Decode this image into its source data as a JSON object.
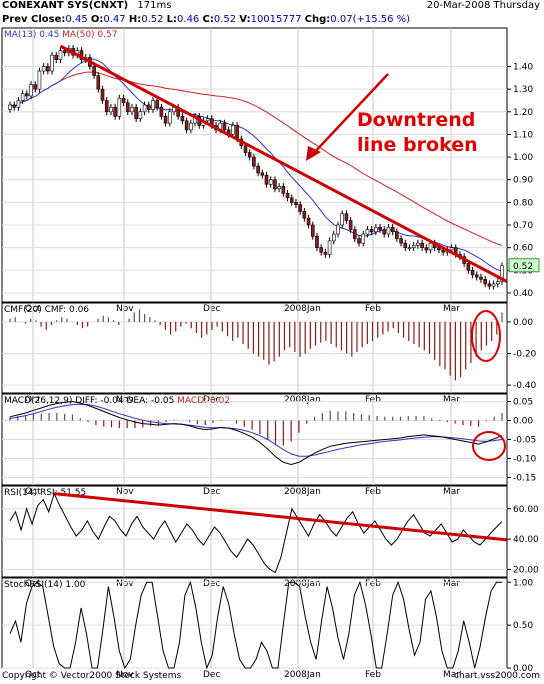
{
  "header": {
    "symbol": "CONEXANT SYS(CNXT)",
    "timing": "171ms",
    "date": "20-Mar-2008 Thursday",
    "prev_close_label": "Prev Close:",
    "prev_close": "0.45",
    "o_label": "O:",
    "o": "0.47",
    "h_label": "H:",
    "h": "0.52",
    "l_label": "L:",
    "l": "0.46",
    "c_label": "C:",
    "c": "0.52",
    "v_label": "V:",
    "v": "10015777",
    "chg_label": "Chg:",
    "chg": "0.07(+15.56 %)"
  },
  "footer": {
    "left": "Copyright © Vector2000 Stock Systems",
    "right": "chart.vss2000.com"
  },
  "colors": {
    "ma13": "#3333cc",
    "ma50": "#cc2222",
    "trend": "#cc0000",
    "up": "#ffffff",
    "down": "#8b1a1a",
    "cmf_pos": "#555555",
    "cmf_neg": "#8b1a1a"
  },
  "chart_data": [
    {
      "type": "candlestick",
      "legend": [
        "MA(13) 0.45",
        "MA(50) 0.57"
      ],
      "annotation": "Downtrend\nline broken",
      "price_badge": "0.52",
      "x_ticks": [
        "Oct",
        "Nov",
        "Dec",
        "2008Jan",
        "Feb",
        "Mar"
      ],
      "y_ticks": [
        "1.40",
        "1.30",
        "1.20",
        "1.10",
        "1.00",
        "0.90",
        "0.80",
        "0.70",
        "0.60",
        "0.50",
        "0.40"
      ],
      "ylim": [
        0.36,
        1.57
      ],
      "closes": [
        1.23,
        1.22,
        1.25,
        1.28,
        1.27,
        1.32,
        1.3,
        1.38,
        1.4,
        1.38,
        1.45,
        1.43,
        1.47,
        1.46,
        1.48,
        1.45,
        1.47,
        1.43,
        1.44,
        1.4,
        1.36,
        1.3,
        1.25,
        1.2,
        1.22,
        1.18,
        1.26,
        1.24,
        1.2,
        1.22,
        1.17,
        1.2,
        1.23,
        1.21,
        1.25,
        1.22,
        1.18,
        1.15,
        1.2,
        1.22,
        1.18,
        1.16,
        1.12,
        1.15,
        1.18,
        1.14,
        1.16,
        1.17,
        1.14,
        1.12,
        1.15,
        1.12,
        1.1,
        1.14,
        1.08,
        1.05,
        1.02,
        1.0,
        0.96,
        0.93,
        0.92,
        0.88,
        0.9,
        0.86,
        0.87,
        0.84,
        0.82,
        0.8,
        0.79,
        0.76,
        0.73,
        0.7,
        0.65,
        0.6,
        0.58,
        0.57,
        0.63,
        0.66,
        0.7,
        0.75,
        0.72,
        0.68,
        0.64,
        0.62,
        0.66,
        0.68,
        0.67,
        0.69,
        0.68,
        0.66,
        0.69,
        0.67,
        0.64,
        0.62,
        0.6,
        0.6,
        0.61,
        0.62,
        0.6,
        0.59,
        0.62,
        0.6,
        0.59,
        0.58,
        0.59,
        0.6,
        0.57,
        0.56,
        0.53,
        0.5,
        0.48,
        0.47,
        0.46,
        0.44,
        0.43,
        0.44,
        0.45,
        0.52
      ],
      "ma13_final": "0.45",
      "ma50_final": "0.57"
    },
    {
      "type": "bar",
      "legend": [
        "CMF(20)",
        "CMF: 0.06"
      ],
      "y_ticks": [
        "0.00",
        "-0.20",
        "-0.40"
      ],
      "ylim": [
        -0.45,
        0.12
      ],
      "x_ticks": [
        "Oct",
        "Nov",
        "Dec",
        "2008Jan",
        "Feb",
        "Mar"
      ],
      "values": [
        0.02,
        0.03,
        0.0,
        -0.01,
        0.02,
        0.01,
        -0.03,
        -0.05,
        -0.02,
        0.01,
        0.03,
        0.02,
        0.0,
        -0.02,
        -0.04,
        -0.03,
        0.0,
        0.02,
        0.04,
        0.03,
        0.01,
        -0.02,
        0.0,
        0.02,
        0.06,
        0.08,
        0.05,
        0.03,
        0.01,
        -0.02,
        -0.05,
        -0.08,
        -0.06,
        -0.03,
        -0.01,
        -0.04,
        -0.07,
        -0.1,
        -0.08,
        -0.05,
        -0.03,
        -0.06,
        -0.09,
        -0.12,
        -0.1,
        -0.14,
        -0.17,
        -0.2,
        -0.22,
        -0.24,
        -0.27,
        -0.25,
        -0.22,
        -0.18,
        -0.16,
        -0.19,
        -0.22,
        -0.2,
        -0.17,
        -0.15,
        -0.13,
        -0.12,
        -0.14,
        -0.16,
        -0.18,
        -0.2,
        -0.22,
        -0.19,
        -0.16,
        -0.14,
        -0.12,
        -0.1,
        -0.08,
        -0.06,
        -0.04,
        -0.07,
        -0.1,
        -0.12,
        -0.14,
        -0.16,
        -0.18,
        -0.2,
        -0.24,
        -0.28,
        -0.3,
        -0.34,
        -0.37,
        -0.35,
        -0.3,
        -0.26,
        -0.22,
        -0.18,
        -0.15,
        -0.12,
        -0.08,
        0.06
      ],
      "marker_circle": true
    },
    {
      "type": "line",
      "legend": [
        "MACD(26,12,9)",
        "DIFF: -0.04",
        "DEA: -0.05",
        "MACD: 0.02"
      ],
      "y_ticks": [
        "0.05",
        "0.00",
        "-0.05",
        "-0.10",
        "-0.15"
      ],
      "ylim": [
        -0.17,
        0.07
      ],
      "x_ticks": [
        "Oct",
        "Nov",
        "Dec",
        "2008Jan",
        "Feb",
        "Mar"
      ],
      "diff": [
        0.01,
        0.015,
        0.02,
        0.027,
        0.033,
        0.04,
        0.045,
        0.048,
        0.05,
        0.046,
        0.04,
        0.032,
        0.024,
        0.016,
        0.008,
        0.002,
        -0.004,
        -0.008,
        -0.01,
        -0.012,
        -0.01,
        -0.008,
        -0.01,
        -0.014,
        -0.02,
        -0.024,
        -0.022,
        -0.018,
        -0.02,
        -0.026,
        -0.034,
        -0.044,
        -0.058,
        -0.075,
        -0.095,
        -0.11,
        -0.116,
        -0.11,
        -0.098,
        -0.086,
        -0.076,
        -0.068,
        -0.064,
        -0.06,
        -0.058,
        -0.056,
        -0.054,
        -0.052,
        -0.05,
        -0.048,
        -0.046,
        -0.042,
        -0.04,
        -0.038,
        -0.04,
        -0.042,
        -0.046,
        -0.05,
        -0.054,
        -0.058,
        -0.062,
        -0.056,
        -0.048,
        -0.04
      ],
      "dea": [
        0.005,
        0.009,
        0.013,
        0.018,
        0.024,
        0.03,
        0.035,
        0.039,
        0.042,
        0.043,
        0.042,
        0.038,
        0.032,
        0.025,
        0.018,
        0.012,
        0.006,
        0.001,
        -0.003,
        -0.006,
        -0.008,
        -0.009,
        -0.01,
        -0.012,
        -0.015,
        -0.018,
        -0.019,
        -0.019,
        -0.02,
        -0.022,
        -0.026,
        -0.032,
        -0.04,
        -0.05,
        -0.063,
        -0.077,
        -0.088,
        -0.094,
        -0.094,
        -0.091,
        -0.086,
        -0.081,
        -0.076,
        -0.072,
        -0.068,
        -0.064,
        -0.061,
        -0.058,
        -0.055,
        -0.053,
        -0.051,
        -0.048,
        -0.046,
        -0.044,
        -0.043,
        -0.043,
        -0.044,
        -0.046,
        -0.048,
        -0.051,
        -0.054,
        -0.055,
        -0.053,
        -0.05
      ],
      "marker_circle": true
    },
    {
      "type": "line",
      "legend": [
        "RSI(14)",
        "RSI: 51.55"
      ],
      "y_ticks": [
        "60.00",
        "40.00",
        "20.00"
      ],
      "ylim": [
        15,
        75
      ],
      "x_ticks": [
        "Oct",
        "Nov",
        "Dec",
        "2008Jan",
        "Feb",
        "Mar"
      ],
      "values": [
        52,
        58,
        46,
        60,
        50,
        62,
        66,
        58,
        70,
        62,
        55,
        48,
        42,
        46,
        52,
        45,
        40,
        48,
        55,
        52,
        46,
        42,
        50,
        55,
        48,
        44,
        40,
        47,
        52,
        45,
        38,
        44,
        50,
        46,
        40,
        36,
        42,
        48,
        44,
        38,
        32,
        28,
        34,
        40,
        36,
        30,
        24,
        20,
        18,
        28,
        44,
        60,
        54,
        48,
        42,
        50,
        56,
        52,
        46,
        42,
        48,
        54,
        58,
        50,
        44,
        48,
        52,
        46,
        40,
        36,
        40,
        46,
        52,
        56,
        50,
        44,
        42,
        46,
        50,
        44,
        38,
        40,
        46,
        42,
        38,
        36,
        40,
        44,
        48,
        51.55
      ],
      "trendline": true
    },
    {
      "type": "line",
      "legend": [
        "StochRSI(14)",
        "1.00"
      ],
      "y_ticks": [
        "1.00",
        "0.50",
        "0.00"
      ],
      "ylim": [
        0,
        1.05
      ],
      "x_ticks": [
        "Oct",
        "Nov",
        "Dec",
        "2008Jan",
        "Feb",
        "Mar"
      ],
      "values": [
        0.4,
        0.55,
        0.3,
        0.75,
        0.95,
        1.0,
        0.95,
        0.6,
        0.25,
        0.05,
        0.0,
        0.0,
        0.3,
        0.7,
        0.4,
        0.0,
        0.0,
        0.45,
        0.95,
        0.6,
        0.2,
        0.0,
        0.1,
        0.5,
        0.85,
        1.0,
        1.0,
        0.6,
        0.2,
        0.0,
        0.0,
        0.3,
        0.85,
        1.0,
        0.7,
        0.3,
        0.0,
        0.15,
        0.6,
        0.95,
        0.75,
        0.4,
        0.1,
        0.0,
        0.0,
        0.1,
        0.3,
        0.2,
        0.0,
        0.0,
        0.5,
        1.0,
        1.0,
        0.95,
        0.6,
        0.3,
        0.1,
        0.55,
        0.95,
        0.7,
        0.35,
        0.1,
        0.4,
        0.85,
        1.0,
        0.75,
        0.4,
        0.0,
        0.0,
        0.4,
        0.85,
        1.0,
        0.8,
        0.45,
        0.15,
        0.3,
        0.8,
        0.9,
        0.6,
        0.2,
        0.0,
        0.0,
        0.2,
        0.55,
        0.3,
        0.0,
        0.25,
        0.6,
        0.9,
        1.0,
        1.0
      ]
    }
  ]
}
